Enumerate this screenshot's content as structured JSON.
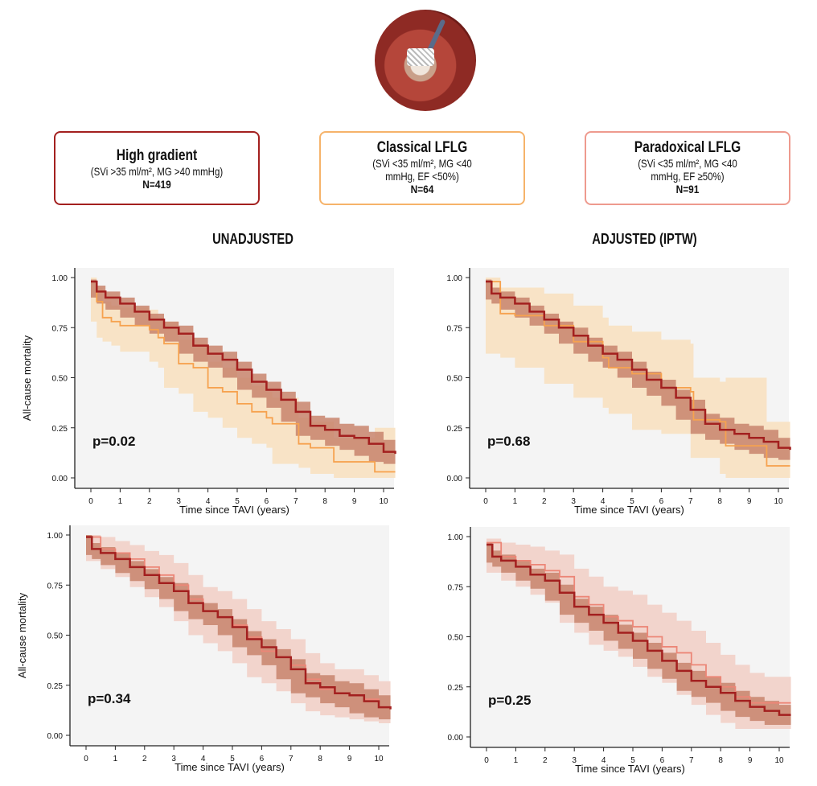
{
  "colors": {
    "high_gradient": "#a3201f",
    "high_gradient_band": "#c8846c",
    "classical": "#f6a24f",
    "classical_band": "#f8e3c6",
    "paradoxical": "#ec8677",
    "paradoxical_band": "#f2d4cc",
    "plot_bg": "#f4f4f4"
  },
  "groups": [
    {
      "title": "High gradient",
      "criteria": "(SVi >35 ml/m², MG >40 mmHg)",
      "n": "N=419"
    },
    {
      "title": "Classical LFLG",
      "criteria": "(SVi <35 ml/m², MG <40 mmHg, EF <50%)",
      "n": "N=64"
    },
    {
      "title": "Paradoxical LFLG",
      "criteria": "(SVi <35 ml/m², MG <40 mmHg, EF ≥50%)",
      "n": "N=91"
    }
  ],
  "sections": {
    "left": "UNADJUSTED",
    "right": "ADJUSTED (IPTW)"
  },
  "chart_data": [
    {
      "type": "line",
      "title": "Unadjusted: High gradient vs Classical LFLG",
      "xlabel": "Time since TAVI (years)",
      "ylabel": "All-cause mortality",
      "xlim": [
        0,
        10.4
      ],
      "ylim": [
        0,
        1
      ],
      "xticks": [
        "0",
        "1",
        "2",
        "3",
        "4",
        "5",
        "6",
        "7",
        "8",
        "9",
        "10"
      ],
      "yticks": [
        "0.00",
        "0.25",
        "0.50",
        "0.75",
        "1.00"
      ],
      "annotation": "p=0.02",
      "series": [
        {
          "name": "High gradient",
          "color": "high_gradient",
          "x": [
            0,
            0.2,
            0.5,
            1,
            1.5,
            2,
            2.5,
            3,
            3.5,
            4,
            4.5,
            5,
            5.5,
            6,
            6.5,
            7,
            7.5,
            8,
            8.5,
            9,
            9.5,
            10,
            10.4
          ],
          "y": [
            0.98,
            0.93,
            0.9,
            0.87,
            0.83,
            0.79,
            0.75,
            0.72,
            0.66,
            0.62,
            0.59,
            0.54,
            0.48,
            0.44,
            0.39,
            0.33,
            0.26,
            0.24,
            0.21,
            0.2,
            0.17,
            0.13,
            0.12
          ],
          "lower": [
            0.97,
            0.9,
            0.87,
            0.84,
            0.8,
            0.76,
            0.72,
            0.68,
            0.62,
            0.58,
            0.55,
            0.5,
            0.44,
            0.4,
            0.35,
            0.28,
            0.21,
            0.19,
            0.16,
            0.14,
            0.11,
            0.08,
            0.07
          ],
          "upper": [
            0.99,
            0.96,
            0.93,
            0.9,
            0.86,
            0.82,
            0.78,
            0.76,
            0.7,
            0.66,
            0.63,
            0.58,
            0.52,
            0.48,
            0.43,
            0.38,
            0.31,
            0.3,
            0.27,
            0.26,
            0.23,
            0.19,
            0.18
          ]
        },
        {
          "name": "Classical LFLG",
          "color": "classical",
          "x": [
            0,
            0.2,
            0.4,
            0.7,
            1,
            2,
            2.3,
            2.5,
            3,
            3.5,
            4,
            4.5,
            5,
            5.5,
            6,
            6.2,
            7.1,
            7.5,
            8.3,
            9.7,
            10.4
          ],
          "y": [
            0.98,
            0.88,
            0.8,
            0.78,
            0.76,
            0.74,
            0.7,
            0.67,
            0.57,
            0.55,
            0.45,
            0.43,
            0.37,
            0.33,
            0.3,
            0.27,
            0.17,
            0.15,
            0.08,
            0.03,
            0.03
          ],
          "lower": [
            0.95,
            0.78,
            0.7,
            0.68,
            0.66,
            0.63,
            0.58,
            0.55,
            0.45,
            0.42,
            0.33,
            0.3,
            0.25,
            0.2,
            0.17,
            0.15,
            0.07,
            0.05,
            0.02,
            0,
            0
          ],
          "upper": [
            1,
            0.95,
            0.88,
            0.86,
            0.85,
            0.84,
            0.8,
            0.78,
            0.69,
            0.67,
            0.58,
            0.55,
            0.5,
            0.46,
            0.43,
            0.4,
            0.3,
            0.28,
            0.2,
            0.25,
            0.25
          ]
        }
      ]
    },
    {
      "type": "line",
      "title": "Adjusted (IPTW): High gradient vs Classical LFLG",
      "xlabel": "Time since TAVI (years)",
      "ylabel": "",
      "xlim": [
        0,
        10.4
      ],
      "ylim": [
        0,
        1
      ],
      "xticks": [
        "0",
        "1",
        "2",
        "3",
        "4",
        "5",
        "6",
        "7",
        "8",
        "9",
        "10"
      ],
      "yticks": [
        "0.00",
        "0.25",
        "0.50",
        "0.75",
        "1.00"
      ],
      "annotation": "p=0.68",
      "series": [
        {
          "name": "High gradient",
          "color": "high_gradient",
          "x": [
            0,
            0.2,
            0.5,
            1,
            1.5,
            2,
            2.5,
            3,
            3.5,
            4,
            4.5,
            5,
            5.5,
            6,
            6.5,
            7,
            7.5,
            8,
            8.5,
            9,
            9.5,
            10,
            10.4
          ],
          "y": [
            0.98,
            0.92,
            0.9,
            0.87,
            0.83,
            0.79,
            0.75,
            0.71,
            0.66,
            0.62,
            0.59,
            0.54,
            0.49,
            0.45,
            0.4,
            0.34,
            0.27,
            0.24,
            0.22,
            0.2,
            0.18,
            0.15,
            0.14
          ],
          "lower": [
            0.97,
            0.89,
            0.87,
            0.84,
            0.8,
            0.76,
            0.72,
            0.67,
            0.62,
            0.58,
            0.55,
            0.5,
            0.45,
            0.41,
            0.36,
            0.29,
            0.22,
            0.19,
            0.17,
            0.14,
            0.12,
            0.1,
            0.09
          ],
          "upper": [
            0.99,
            0.95,
            0.93,
            0.9,
            0.86,
            0.82,
            0.78,
            0.75,
            0.7,
            0.66,
            0.63,
            0.58,
            0.53,
            0.49,
            0.44,
            0.39,
            0.32,
            0.3,
            0.27,
            0.26,
            0.24,
            0.2,
            0.19
          ]
        },
        {
          "name": "Classical LFLG",
          "color": "classical",
          "x": [
            0,
            0.5,
            1,
            2,
            3,
            4,
            4.2,
            5,
            6,
            7,
            7.1,
            8,
            8.2,
            9.6,
            10.4
          ],
          "y": [
            0.98,
            0.82,
            0.81,
            0.76,
            0.68,
            0.6,
            0.55,
            0.52,
            0.45,
            0.43,
            0.29,
            0.28,
            0.16,
            0.06,
            0.06
          ],
          "lower": [
            0.95,
            0.62,
            0.6,
            0.55,
            0.47,
            0.4,
            0.35,
            0.32,
            0.24,
            0.22,
            0.1,
            0.1,
            0.02,
            0,
            0
          ],
          "upper": [
            1,
            0.95,
            0.95,
            0.92,
            0.86,
            0.8,
            0.76,
            0.73,
            0.69,
            0.67,
            0.5,
            0.48,
            0.5,
            0.28,
            0.28
          ]
        }
      ]
    },
    {
      "type": "line",
      "title": "Unadjusted: High gradient vs Paradoxical LFLG",
      "xlabel": "Time since TAVI (years)",
      "ylabel": "All-cause mortality",
      "xlim": [
        0,
        10.4
      ],
      "ylim": [
        0,
        1
      ],
      "xticks": [
        "0",
        "1",
        "2",
        "3",
        "4",
        "5",
        "6",
        "7",
        "8",
        "9",
        "10"
      ],
      "yticks": [
        "0.00",
        "0.25",
        "0.50",
        "0.75",
        "1.00"
      ],
      "annotation": "p=0.34",
      "series": [
        {
          "name": "High gradient",
          "color": "high_gradient",
          "x": [
            0,
            0.2,
            0.5,
            1,
            1.5,
            2,
            2.5,
            3,
            3.5,
            4,
            4.5,
            5,
            5.5,
            6,
            6.5,
            7,
            7.5,
            8,
            8.5,
            9,
            9.5,
            10,
            10.4
          ],
          "y": [
            0.99,
            0.93,
            0.91,
            0.88,
            0.84,
            0.8,
            0.76,
            0.72,
            0.66,
            0.62,
            0.59,
            0.54,
            0.48,
            0.44,
            0.39,
            0.33,
            0.26,
            0.24,
            0.21,
            0.2,
            0.17,
            0.14,
            0.13
          ],
          "lower": [
            0.98,
            0.9,
            0.88,
            0.85,
            0.81,
            0.77,
            0.73,
            0.68,
            0.62,
            0.58,
            0.55,
            0.5,
            0.44,
            0.4,
            0.35,
            0.28,
            0.21,
            0.19,
            0.16,
            0.14,
            0.11,
            0.09,
            0.08
          ],
          "upper": [
            1,
            0.96,
            0.94,
            0.91,
            0.87,
            0.83,
            0.79,
            0.76,
            0.7,
            0.66,
            0.63,
            0.58,
            0.52,
            0.48,
            0.43,
            0.38,
            0.31,
            0.3,
            0.27,
            0.26,
            0.23,
            0.2,
            0.19
          ]
        },
        {
          "name": "Paradoxical LFLG",
          "color": "paradoxical",
          "x": [
            0,
            0.5,
            1,
            1.5,
            2,
            2.5,
            3,
            3.5,
            4,
            4.5,
            5,
            5.5,
            6,
            6.5,
            7,
            7.5,
            8,
            8.5,
            9,
            9.5,
            10,
            10.4
          ],
          "y": [
            0.99,
            0.93,
            0.91,
            0.88,
            0.84,
            0.8,
            0.75,
            0.68,
            0.62,
            0.59,
            0.55,
            0.49,
            0.42,
            0.39,
            0.35,
            0.28,
            0.23,
            0.21,
            0.2,
            0.18,
            0.14,
            0.13
          ],
          "lower": [
            0.97,
            0.87,
            0.83,
            0.79,
            0.74,
            0.69,
            0.64,
            0.57,
            0.5,
            0.46,
            0.42,
            0.36,
            0.29,
            0.26,
            0.22,
            0.16,
            0.12,
            0.1,
            0.09,
            0.08,
            0.07,
            0.06
          ],
          "upper": [
            1,
            0.99,
            0.97,
            0.95,
            0.92,
            0.9,
            0.86,
            0.8,
            0.74,
            0.72,
            0.68,
            0.63,
            0.57,
            0.53,
            0.48,
            0.41,
            0.36,
            0.33,
            0.33,
            0.3,
            0.27,
            0.26
          ]
        }
      ]
    },
    {
      "type": "line",
      "title": "Adjusted (IPTW): High gradient vs Paradoxical LFLG",
      "xlabel": "Time since TAVI (years)",
      "ylabel": "",
      "xlim": [
        0,
        10.4
      ],
      "ylim": [
        0,
        1
      ],
      "xticks": [
        "0",
        "1",
        "2",
        "3",
        "4",
        "5",
        "6",
        "7",
        "8",
        "9",
        "10"
      ],
      "yticks": [
        "0.00",
        "0.25",
        "0.50",
        "0.75",
        "1.00"
      ],
      "annotation": "p=0.25",
      "series": [
        {
          "name": "High gradient",
          "color": "high_gradient",
          "x": [
            0,
            0.2,
            0.5,
            1,
            1.5,
            2,
            2.5,
            3,
            3.5,
            4,
            4.5,
            5,
            5.5,
            6,
            6.5,
            7,
            7.5,
            8,
            8.5,
            9,
            9.5,
            10,
            10.4
          ],
          "y": [
            0.96,
            0.9,
            0.88,
            0.85,
            0.81,
            0.78,
            0.72,
            0.65,
            0.61,
            0.57,
            0.52,
            0.48,
            0.43,
            0.38,
            0.33,
            0.28,
            0.25,
            0.22,
            0.18,
            0.15,
            0.13,
            0.11,
            0.11
          ],
          "lower": [
            0.95,
            0.87,
            0.85,
            0.82,
            0.78,
            0.74,
            0.68,
            0.61,
            0.57,
            0.53,
            0.48,
            0.44,
            0.39,
            0.34,
            0.29,
            0.23,
            0.2,
            0.17,
            0.13,
            0.1,
            0.08,
            0.06,
            0.06
          ],
          "upper": [
            0.97,
            0.93,
            0.91,
            0.88,
            0.84,
            0.82,
            0.76,
            0.69,
            0.65,
            0.61,
            0.56,
            0.52,
            0.47,
            0.42,
            0.37,
            0.33,
            0.3,
            0.27,
            0.23,
            0.2,
            0.18,
            0.16,
            0.16
          ]
        },
        {
          "name": "Paradoxical LFLG",
          "color": "paradoxical",
          "x": [
            0,
            0.5,
            1,
            1.5,
            2,
            2.5,
            3,
            3.5,
            4,
            4.5,
            5,
            5.5,
            6,
            6.5,
            7,
            7.5,
            8,
            8.5,
            9,
            9.5,
            10,
            10.4
          ],
          "y": [
            0.97,
            0.9,
            0.88,
            0.86,
            0.83,
            0.8,
            0.7,
            0.66,
            0.6,
            0.58,
            0.55,
            0.5,
            0.45,
            0.42,
            0.36,
            0.3,
            0.25,
            0.2,
            0.17,
            0.17,
            0.17,
            0.17
          ],
          "lower": [
            0.95,
            0.82,
            0.78,
            0.75,
            0.71,
            0.67,
            0.57,
            0.52,
            0.46,
            0.43,
            0.4,
            0.35,
            0.3,
            0.27,
            0.21,
            0.16,
            0.11,
            0.07,
            0.04,
            0.04,
            0.04,
            0.04
          ],
          "upper": [
            0.99,
            0.97,
            0.96,
            0.95,
            0.93,
            0.91,
            0.84,
            0.8,
            0.75,
            0.73,
            0.71,
            0.66,
            0.62,
            0.58,
            0.53,
            0.47,
            0.41,
            0.36,
            0.32,
            0.3,
            0.3,
            0.3
          ]
        }
      ]
    }
  ]
}
